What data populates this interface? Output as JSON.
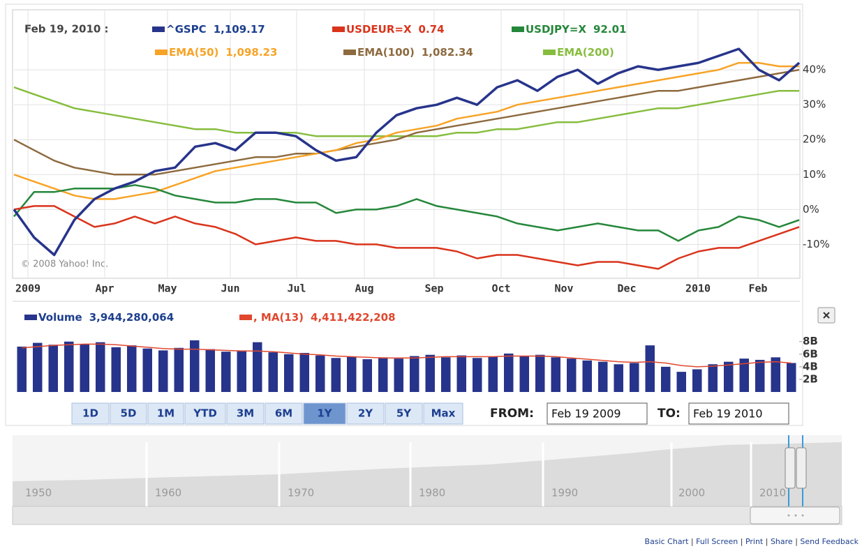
{
  "chart_data": [
    {
      "type": "line",
      "date_label": "Feb 19, 2010 :",
      "annotation": "© 2008 Yahoo! Inc.",
      "x_labels": [
        "2009",
        "Apr",
        "May",
        "Jun",
        "Jul",
        "Aug",
        "Sep",
        "Oct",
        "Nov",
        "Dec",
        "2010",
        "Feb"
      ],
      "ylim": [
        -19.5,
        57
      ],
      "yticks": [
        {
          "value": 40,
          "label": "40%"
        },
        {
          "value": 30,
          "label": "30%"
        },
        {
          "value": 20,
          "label": "20%"
        },
        {
          "value": 10,
          "label": "10%"
        },
        {
          "value": 0,
          "label": "0%"
        },
        {
          "value": -10,
          "label": "-10%"
        }
      ],
      "grid": true,
      "series": [
        {
          "name": "^GSPC",
          "legend_value": "1,109.17",
          "color": "#27348b",
          "values": [
            0,
            -8,
            -13,
            -3,
            3,
            6,
            8,
            11,
            12,
            18,
            19,
            17,
            22,
            22,
            21,
            17,
            14,
            15,
            22,
            27,
            29,
            30,
            32,
            30,
            35,
            37,
            34,
            38,
            40,
            36,
            39,
            41,
            40,
            41,
            42,
            44,
            46,
            40,
            37,
            42
          ]
        },
        {
          "name": "USDEUR=X",
          "legend_value": "0.74",
          "color": "#d9341c",
          "values": [
            0,
            1,
            1,
            -2,
            -5,
            -4,
            -2,
            -4,
            -2,
            -4,
            -5,
            -7,
            -10,
            -9,
            -8,
            -9,
            -9,
            -10,
            -10,
            -11,
            -11,
            -11,
            -12,
            -14,
            -13,
            -13,
            -14,
            -15,
            -16,
            -15,
            -15,
            -16,
            -17,
            -14,
            -12,
            -11,
            -11,
            -9,
            -7,
            -5
          ]
        },
        {
          "name": "USDJPY=X",
          "legend_value": "92.01",
          "color": "#25873a",
          "values": [
            -2,
            5,
            5,
            6,
            6,
            6,
            7,
            6,
            4,
            3,
            2,
            2,
            3,
            3,
            2,
            2,
            -1,
            0,
            0,
            1,
            3,
            1,
            0,
            -1,
            -2,
            -4,
            -5,
            -6,
            -5,
            -4,
            -5,
            -6,
            -6,
            -9,
            -6,
            -5,
            -2,
            -3,
            -5,
            -3
          ]
        },
        {
          "name": "EMA(50)",
          "legend_value": "1,098.23",
          "color": "#f7a326",
          "values": [
            10,
            8,
            6,
            4,
            3,
            3,
            4,
            5,
            7,
            9,
            11,
            12,
            13,
            14,
            15,
            16,
            17,
            19,
            20,
            22,
            23,
            24,
            26,
            27,
            28,
            30,
            31,
            32,
            33,
            34,
            35,
            36,
            37,
            38,
            39,
            40,
            42,
            42,
            41,
            41
          ]
        },
        {
          "name": "EMA(100)",
          "legend_value": "1,082.34",
          "color": "#8d6a3f",
          "values": [
            20,
            17,
            14,
            12,
            11,
            10,
            10,
            10,
            11,
            12,
            13,
            14,
            15,
            15,
            16,
            16,
            17,
            18,
            19,
            20,
            22,
            23,
            24,
            25,
            26,
            27,
            28,
            29,
            30,
            31,
            32,
            33,
            34,
            34,
            35,
            36,
            37,
            38,
            39,
            40
          ]
        },
        {
          "name": "EMA(200)",
          "color": "#86bd3e",
          "values": [
            35,
            33,
            31,
            29,
            28,
            27,
            26,
            25,
            24,
            23,
            23,
            22,
            22,
            22,
            22,
            21,
            21,
            21,
            21,
            21,
            21,
            21,
            22,
            22,
            23,
            23,
            24,
            25,
            25,
            26,
            27,
            28,
            29,
            29,
            30,
            31,
            32,
            33,
            34,
            34
          ]
        }
      ]
    },
    {
      "type": "bar",
      "ylim": [
        0,
        9.3
      ],
      "yticks": [
        {
          "value": 8,
          "label": "8B"
        },
        {
          "value": 6,
          "label": "6B"
        },
        {
          "value": 4,
          "label": "4B"
        },
        {
          "value": 2,
          "label": "2B"
        }
      ],
      "series": [
        {
          "name": "Volume",
          "legend_value": "3,944,280,064",
          "color": "#27348b",
          "values": [
            7.2,
            7.8,
            7.5,
            8.0,
            7.6,
            7.9,
            7.1,
            7.4,
            6.9,
            6.6,
            7.0,
            8.2,
            6.8,
            6.4,
            6.6,
            7.9,
            6.3,
            6.0,
            6.2,
            5.8,
            5.4,
            5.6,
            5.2,
            5.5,
            5.3,
            5.7,
            5.9,
            5.5,
            5.8,
            5.4,
            5.6,
            6.1,
            5.7,
            5.9,
            5.5,
            5.3,
            5.0,
            4.8,
            4.4,
            4.6,
            7.4,
            4.0,
            3.2,
            3.6,
            4.4,
            4.8,
            5.3,
            5.1,
            5.5,
            4.6
          ]
        },
        {
          "name": ", MA(13)",
          "legend_value": "4,411,422,208",
          "color": "#e0472e",
          "type": "line",
          "values": [
            7.0,
            7.2,
            7.4,
            7.5,
            7.6,
            7.6,
            7.5,
            7.3,
            7.1,
            6.9,
            6.8,
            6.8,
            6.7,
            6.6,
            6.5,
            6.5,
            6.4,
            6.2,
            6.0,
            5.9,
            5.7,
            5.6,
            5.5,
            5.4,
            5.4,
            5.4,
            5.5,
            5.6,
            5.6,
            5.6,
            5.6,
            5.7,
            5.7,
            5.7,
            5.6,
            5.4,
            5.2,
            5.0,
            4.8,
            4.7,
            4.8,
            4.6,
            4.2,
            4.0,
            4.1,
            4.3,
            4.5,
            4.7,
            4.8,
            4.6
          ]
        }
      ]
    }
  ],
  "toolbar": {
    "ranges": [
      {
        "label": "1D"
      },
      {
        "label": "5D"
      },
      {
        "label": "1M"
      },
      {
        "label": "YTD"
      },
      {
        "label": "3M"
      },
      {
        "label": "6M"
      },
      {
        "label": "1Y",
        "selected": true
      },
      {
        "label": "2Y"
      },
      {
        "label": "5Y"
      },
      {
        "label": "Max"
      }
    ],
    "from_label": "FROM:",
    "from_value": "Feb 19 2009",
    "to_label": "TO:",
    "to_value": "Feb 19 2010"
  },
  "navigator": {
    "decades": [
      "1950",
      "1960",
      "1970",
      "1980",
      "1990",
      "2000",
      "2010"
    ]
  },
  "footer": {
    "links": [
      "Basic Chart",
      "Full Screen",
      "Print",
      "Share",
      "Send Feedback"
    ]
  }
}
